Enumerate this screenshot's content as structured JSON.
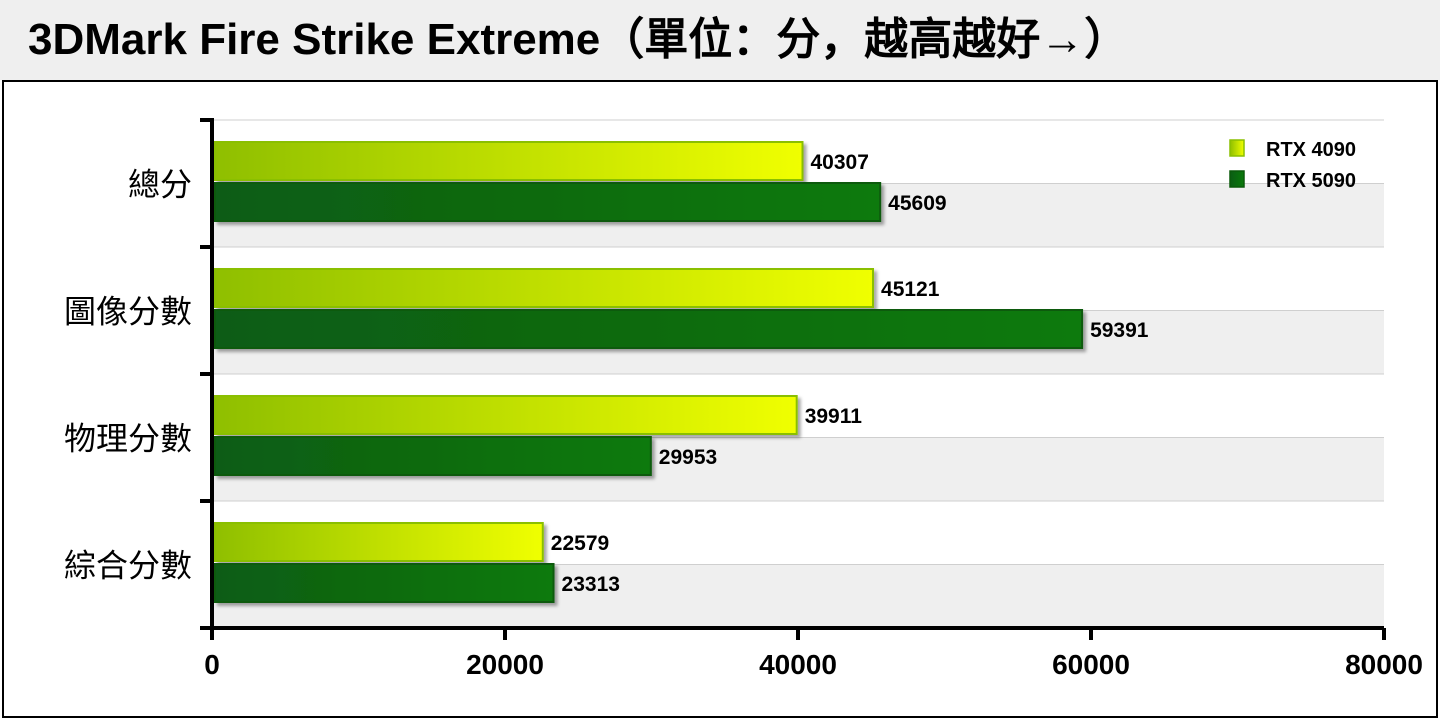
{
  "title": "3DMark Fire Strike Extreme（單位：分，越高越好→）",
  "chart_data": {
    "type": "bar",
    "orientation": "horizontal",
    "title": "3DMark Fire Strike Extreme（單位：分，越高越好→）",
    "categories": [
      "總分",
      "圖像分數",
      "物理分數",
      "綜合分數"
    ],
    "series": [
      {
        "name": "RTX 4090",
        "values": [
          40307,
          45121,
          39911,
          22579
        ],
        "color": "#e6f500"
      },
      {
        "name": "RTX 5090",
        "values": [
          45609,
          59391,
          29953,
          23313
        ],
        "color": "#0a6e0a"
      }
    ],
    "xlim": [
      0,
      80000
    ],
    "xticks": [
      0,
      20000,
      40000,
      60000,
      80000
    ],
    "xlabel": "",
    "ylabel": "",
    "grid": true,
    "legend": "top-right"
  }
}
